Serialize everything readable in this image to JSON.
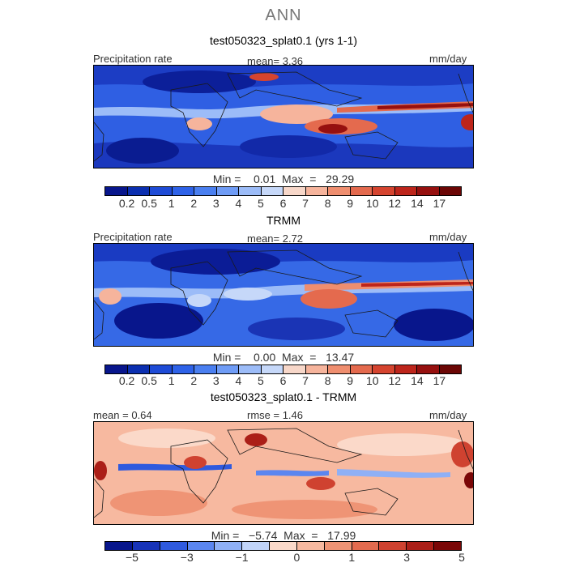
{
  "suptitle": "ANN",
  "panels": [
    {
      "title": "test050323_splat0.1 (yrs 1-1)",
      "left_label": "Precipitation rate",
      "center_label": "mean=   3.36",
      "right_label": "mm/day",
      "min_max": "Min =    0.01  Max  =   29.29"
    },
    {
      "title": "TRMM",
      "left_label": "Precipitation rate",
      "center_label": "mean=   2.72",
      "right_label": "mm/day",
      "min_max": "Min =    0.00  Max  =   13.47"
    },
    {
      "title": "test050323_splat0.1 - TRMM",
      "left_label": "mean =   0.64",
      "center_label": "rmse =   1.46",
      "right_label": "mm/day",
      "min_max": "Min =   −5.74  Max  =   17.99"
    }
  ],
  "colors": {
    "precip_scale": [
      "#08168c",
      "#0b2fb0",
      "#1e4bd6",
      "#2e62e8",
      "#4a7ff0",
      "#6f9cf6",
      "#9cbcf8",
      "#c6d8f9",
      "#f7d7c9",
      "#f6b49c",
      "#ef8e6f",
      "#e46a4e",
      "#d5442f",
      "#bd251b",
      "#96100f",
      "#6b0605"
    ],
    "diff_scale": [
      "#08168c",
      "#1733b8",
      "#2f5ade",
      "#5b86f0",
      "#8fb0f6",
      "#c1d4f9",
      "#fbd9c9",
      "#f7b9a0",
      "#ef9475",
      "#e36b4f",
      "#cf4230",
      "#ab1f18",
      "#7a0707"
    ],
    "land": "#1a1a1a"
  },
  "chart_data": [
    {
      "type": "heatmap",
      "title": "test050323_splat0.1 (yrs 1-1)",
      "quantity": "Precipitation rate",
      "units": "mm/day",
      "mean": 3.36,
      "min": 0.01,
      "max": 29.29,
      "levels": [
        0.2,
        0.5,
        1,
        2,
        3,
        4,
        5,
        6,
        7,
        8,
        9,
        10,
        12,
        14,
        17
      ],
      "tick_labels": [
        "0.2",
        "0.5",
        "1",
        "2",
        "3",
        "4",
        "5",
        "6",
        "7",
        "8",
        "9",
        "10",
        "12",
        "14",
        "17"
      ]
    },
    {
      "type": "heatmap",
      "title": "TRMM",
      "quantity": "Precipitation rate",
      "units": "mm/day",
      "mean": 2.72,
      "min": 0.0,
      "max": 13.47,
      "levels": [
        0.2,
        0.5,
        1,
        2,
        3,
        4,
        5,
        6,
        7,
        8,
        9,
        10,
        12,
        14,
        17
      ],
      "tick_labels": [
        "0.2",
        "0.5",
        "1",
        "2",
        "3",
        "4",
        "5",
        "6",
        "7",
        "8",
        "9",
        "10",
        "12",
        "14",
        "17"
      ]
    },
    {
      "type": "heatmap",
      "title": "test050323_splat0.1 - TRMM",
      "units": "mm/day",
      "mean": 0.64,
      "rmse": 1.46,
      "min": -5.74,
      "max": 17.99,
      "levels": [
        -5,
        -4,
        -3,
        -2,
        -1,
        -0.5,
        0,
        0.5,
        1,
        2,
        3,
        4,
        5
      ],
      "tick_labels": [
        "−5",
        "−3",
        "−1",
        "0",
        "1",
        "3",
        "5"
      ]
    }
  ]
}
